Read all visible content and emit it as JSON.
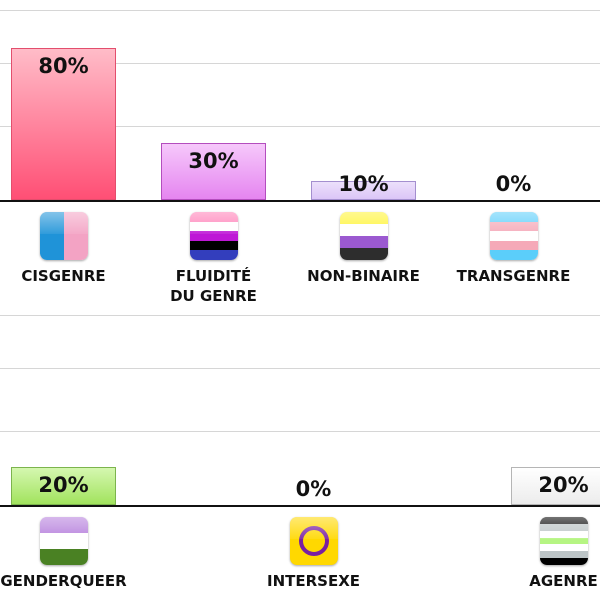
{
  "chart_data": [
    {
      "type": "bar",
      "categories": [
        "CISGENRE",
        "FLUIDITÉ\nDU GENRE",
        "NON-BINAIRE",
        "TRANSGENRE"
      ],
      "values": [
        80,
        30,
        10,
        0
      ],
      "value_labels": [
        "80%",
        "30%",
        "10%",
        "0%"
      ],
      "ylim": [
        0,
        100
      ],
      "grid": true,
      "bar_colors": [
        {
          "top": "#ffbcc8",
          "bottom": "#ff4f75",
          "border": "#e34e6d"
        },
        {
          "top": "#f6c8fb",
          "bottom": "#e585f0",
          "border": "#b44dbe"
        },
        {
          "top": "#ece0fb",
          "bottom": "#dcc6f7",
          "border": "#a48fcf"
        },
        {
          "top": "#ffffff",
          "bottom": "#ffffff",
          "border": "#cccccc"
        }
      ],
      "flags": [
        {
          "name": "cisgender-flag-icon",
          "kind": "halves",
          "colors": [
            "#1f93d8",
            "#f3a3c4"
          ]
        },
        {
          "name": "genderfluid-flag-icon",
          "kind": "stripes",
          "colors": [
            "#ff7fb7",
            "#ffffff",
            "#be18d6",
            "#000000",
            "#333ebd"
          ]
        },
        {
          "name": "nonbinary-flag-icon",
          "kind": "stripes",
          "colors": [
            "#fff433",
            "#ffffff",
            "#9b59d0",
            "#2d2d2d"
          ]
        },
        {
          "name": "transgender-flag-icon",
          "kind": "stripes",
          "colors": [
            "#5bcefa",
            "#f5a9b8",
            "#ffffff",
            "#f5a9b8",
            "#5bcefa"
          ]
        }
      ]
    },
    {
      "type": "bar",
      "categories": [
        "GENDERQUEER",
        "INTERSEXE",
        "AGENRE"
      ],
      "values": [
        20,
        0,
        20
      ],
      "value_labels": [
        "20%",
        "0%",
        "20%"
      ],
      "ylim": [
        0,
        100
      ],
      "grid": true,
      "bar_colors": [
        {
          "top": "#d5f7b0",
          "bottom": "#a2e35e",
          "border": "#7cb44d"
        },
        {
          "top": "#ffffff",
          "bottom": "#ffffff",
          "border": "#cccccc"
        },
        {
          "top": "#ffffff",
          "bottom": "#ececec",
          "border": "#b5b5b5"
        }
      ],
      "flags": [
        {
          "name": "genderqueer-flag-icon",
          "kind": "stripes",
          "colors": [
            "#b57edc",
            "#ffffff",
            "#4a8123"
          ]
        },
        {
          "name": "intersex-flag-icon",
          "kind": "ring",
          "colors": [
            "#ffd800",
            "#7a1fa2"
          ]
        },
        {
          "name": "agender-flag-icon",
          "kind": "stripes",
          "colors": [
            "#000000",
            "#bcc4c6",
            "#ffffff",
            "#b6f583",
            "#ffffff",
            "#bcc4c6",
            "#000000"
          ]
        }
      ]
    }
  ]
}
